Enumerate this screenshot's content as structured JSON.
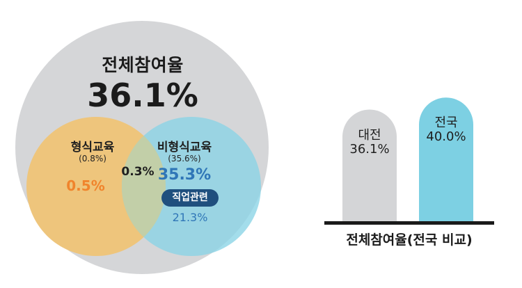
{
  "venn": {
    "total_label": "전체참여율",
    "total_value": "36.1%",
    "formal_label": "형식교육",
    "formal_sub": "(0.8%)",
    "formal_value": "0.5%",
    "overlap_value": "0.3%",
    "nonformal_label": "비형식교육",
    "nonformal_sub": "(35.6%)",
    "nonformal_value": "35.3%",
    "vocational_label": "직업관련",
    "vocational_value": "21.3%"
  },
  "chart_data": {
    "type": "bar",
    "categories": [
      "대전",
      "전국"
    ],
    "values": [
      36.1,
      40.0
    ],
    "value_labels": [
      "36.1%",
      "40.0%"
    ],
    "colors": [
      "#d4d5d7",
      "#7dd0e3"
    ],
    "xlabel": "전체참여율(전국 비교)",
    "ylabel": "",
    "ylim": [
      0,
      45
    ],
    "grid": false,
    "legend": "none"
  }
}
